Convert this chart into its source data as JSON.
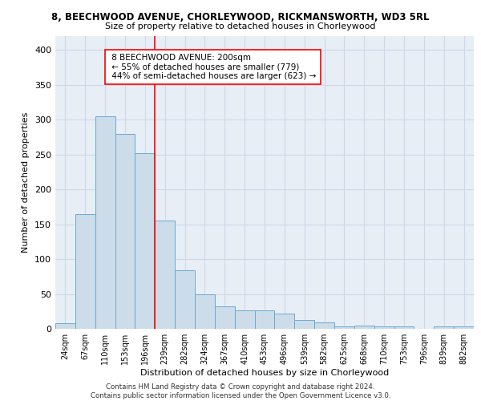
{
  "title1": "8, BEECHWOOD AVENUE, CHORLEYWOOD, RICKMANSWORTH, WD3 5RL",
  "title2": "Size of property relative to detached houses in Chorleywood",
  "xlabel": "Distribution of detached houses by size in Chorleywood",
  "ylabel": "Number of detached properties",
  "footer1": "Contains HM Land Registry data © Crown copyright and database right 2024.",
  "footer2": "Contains public sector information licensed under the Open Government Licence v3.0.",
  "bar_labels": [
    "24sqm",
    "67sqm",
    "110sqm",
    "153sqm",
    "196sqm",
    "239sqm",
    "282sqm",
    "324sqm",
    "367sqm",
    "410sqm",
    "453sqm",
    "496sqm",
    "539sqm",
    "582sqm",
    "625sqm",
    "668sqm",
    "710sqm",
    "753sqm",
    "796sqm",
    "839sqm",
    "882sqm"
  ],
  "bar_values": [
    8,
    165,
    305,
    280,
    252,
    155,
    84,
    50,
    32,
    27,
    26,
    22,
    13,
    9,
    4,
    5,
    4,
    3,
    0,
    4,
    3
  ],
  "bar_color": "#ccdce8",
  "bar_edge_color": "#6aaad4",
  "vline_x": 4.5,
  "vline_color": "red",
  "annotation_text": " 8 BEECHWOOD AVENUE: 200sqm\n ← 55% of detached houses are smaller (779)\n 44% of semi-detached houses are larger (623) →",
  "annotation_box_color": "white",
  "annotation_box_edge_color": "red",
  "ylim": [
    0,
    420
  ],
  "yticks": [
    0,
    50,
    100,
    150,
    200,
    250,
    300,
    350,
    400
  ],
  "grid_color": "#d0d8e8",
  "background_color": "#e8eef5"
}
